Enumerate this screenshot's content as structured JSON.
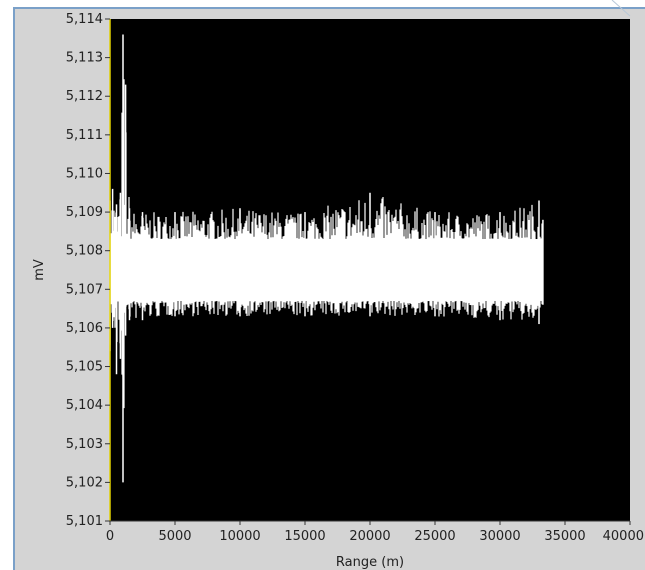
{
  "chart_data": {
    "type": "line",
    "xlabel": "Range (m)",
    "ylabel": "mV",
    "xlim": [
      0,
      40000
    ],
    "ylim": [
      5.101,
      5.114
    ],
    "x_ticks": [
      "0",
      "5000",
      "10000",
      "15000",
      "20000",
      "25000",
      "30000",
      "35000",
      "40000"
    ],
    "y_ticks": [
      "5,101",
      "5,102",
      "5,103",
      "5,104",
      "5,105",
      "5,106",
      "5,107",
      "5,108",
      "5,109",
      "5,110",
      "5,111",
      "5,112",
      "5,113",
      "5,114"
    ],
    "background": "#000000",
    "trace_color": "#ffffff",
    "axis_marker_color": "#e0d000",
    "grid": false,
    "series": [
      {
        "envelope": {
          "x": [
            0,
            200,
            500,
            800,
            1000,
            1200,
            1500,
            2500,
            5000,
            10000,
            15000,
            20000,
            25000,
            30000,
            33000,
            33300
          ],
          "y_high": [
            5.1093,
            5.1096,
            5.1092,
            5.1095,
            5.1136,
            5.1123,
            5.1091,
            5.109,
            5.109,
            5.1091,
            5.109,
            5.1095,
            5.109,
            5.109,
            5.1093,
            5.1088
          ],
          "y_low": [
            5.1054,
            5.106,
            5.1048,
            5.1052,
            5.102,
            5.1058,
            5.1062,
            5.1062,
            5.1063,
            5.1063,
            5.1063,
            5.1063,
            5.1063,
            5.1062,
            5.1061,
            5.1066
          ]
        },
        "core_band": [
          5.1067,
          5.1083
        ]
      }
    ]
  }
}
